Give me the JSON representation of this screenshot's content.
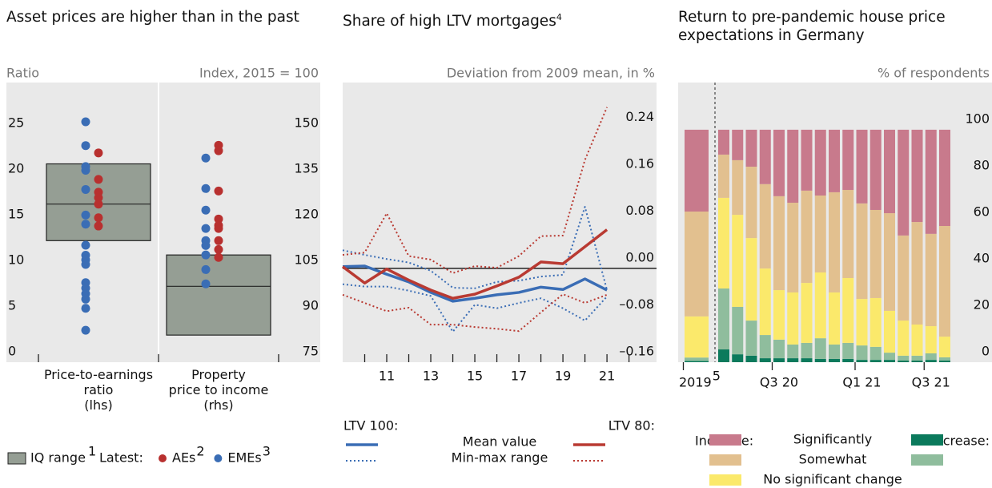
{
  "chart_data": [
    {
      "type": "box",
      "title": "Asset prices are higher than in the past",
      "y_label": "Ratio",
      "y2_label": "Index, 2015 = 100",
      "categories": [
        "Price-to-earnings\nratio\n(lhs)",
        "Property\nprice to income\n(rhs)"
      ],
      "boxes": [
        {
          "axis": "y",
          "q1": 13.3,
          "median": 17.3,
          "q3": 21.7
        },
        {
          "axis": "y2",
          "q1": 83.9,
          "median": 99.9,
          "q3": 110.2
        }
      ],
      "box_color": "#959e94",
      "series": [
        {
          "name": "AEs",
          "note": "2",
          "color": "#b8302f",
          "values": [
            [
              22.9,
              20.0,
              18.6,
              18.0,
              17.3,
              15.8,
              14.9
            ],
            [
              146.2,
              144.4,
              131.2,
              122,
              119.9,
              118.9,
              114.9,
              112,
              109.4
            ]
          ]
        },
        {
          "name": "EMEs",
          "note": "3",
          "color": "#3a6db5",
          "values": [
            [
              26.3,
              23.7,
              21.4,
              21.0,
              18.9,
              16.1,
              15.1,
              12.8,
              11.7,
              11.2,
              10.7,
              8.7,
              8.1,
              7.5,
              6.9,
              5.9,
              3.5
            ],
            [
              142,
              132,
              124.9,
              118.9,
              114.9,
              113.3,
              110.2,
              105.4,
              100.7
            ]
          ]
        }
      ],
      "ylim": [
        0,
        30.6
      ],
      "yticks": [
        0,
        5,
        10,
        15,
        20,
        25
      ],
      "y2lim": [
        75,
        166.8
      ],
      "y2ticks": [
        75,
        90,
        105,
        120,
        135,
        150
      ],
      "legend": {
        "box_label": "IQ range",
        "box_note": "1",
        "latest_label": "Latest:"
      }
    },
    {
      "type": "line",
      "title": "Share of high LTV mortgages",
      "title_note": "4",
      "y_label": "Deviation from 2009 mean, in %",
      "x": [
        2009,
        2010,
        2011,
        2012,
        2013,
        2014,
        2015,
        2016,
        2017,
        2018,
        2019,
        2020,
        2021
      ],
      "xlim": [
        2009,
        2023.25
      ],
      "xticks": [
        {
          "value": 2011,
          "label": "11"
        },
        {
          "value": 2013,
          "label": "13"
        },
        {
          "value": 2015,
          "label": "15"
        },
        {
          "value": 2017,
          "label": "17"
        },
        {
          "value": 2019,
          "label": "19"
        },
        {
          "value": 2021,
          "label": "21"
        }
      ],
      "xminorticks": [
        2010,
        2012,
        2014,
        2016,
        2018,
        2020,
        2022
      ],
      "ylim": [
        -0.16,
        0.317
      ],
      "yticks": [
        {
          "value": -0.16,
          "label": "–0.16"
        },
        {
          "value": -0.08,
          "label": "–0.08"
        },
        {
          "value": 0,
          "label": "0.00"
        },
        0.08,
        0.16,
        0.24
      ],
      "zero_line": true,
      "legend": {
        "groups": [
          "LTV 100:",
          "LTV 80:"
        ],
        "entries": [
          "Mean value",
          "Min-max range"
        ]
      },
      "series": [
        {
          "group": 0,
          "entry": 0,
          "color": "#3a6db5",
          "values": [
            0.003,
            0.004,
            -0.01,
            -0.023,
            -0.041,
            -0.056,
            -0.051,
            -0.045,
            -0.041,
            -0.032,
            -0.036,
            -0.018,
            -0.037
          ]
        },
        {
          "group": 0,
          "entry": 1,
          "color": "#3a6db5",
          "low": [
            -0.027,
            -0.031,
            -0.031,
            -0.038,
            -0.047,
            -0.108,
            -0.062,
            -0.068,
            -0.059,
            -0.051,
            -0.068,
            -0.089,
            -0.048
          ],
          "high": [
            0.031,
            0.023,
            0.016,
            0.01,
            -0.004,
            -0.033,
            -0.034,
            -0.023,
            -0.021,
            -0.014,
            -0.011,
            0.105,
            -0.037
          ]
        },
        {
          "group": 1,
          "entry": 0,
          "color": "#b93a32",
          "values": [
            0.003,
            -0.025,
            -0.001,
            -0.02,
            -0.037,
            -0.051,
            -0.044,
            -0.03,
            -0.015,
            0.011,
            0.008,
            0.037,
            0.066
          ]
        },
        {
          "group": 1,
          "entry": 1,
          "color": "#b93a32",
          "low": [
            -0.045,
            -0.059,
            -0.073,
            -0.067,
            -0.096,
            -0.096,
            -0.1,
            -0.103,
            -0.107,
            -0.075,
            -0.044,
            -0.059,
            -0.045
          ],
          "high": [
            0.023,
            0.027,
            0.094,
            0.021,
            0.015,
            -0.008,
            0.004,
            0.001,
            0.021,
            0.055,
            0.056,
            0.185,
            0.275
          ]
        }
      ]
    },
    {
      "type": "bar",
      "stacked": true,
      "title": "Return to pre-pandemic house price expectations in Germany",
      "y_label": "% of respondents",
      "categories": [
        "2019",
        null,
        null,
        null,
        null,
        "Q3 20",
        null,
        null,
        null,
        null,
        null,
        "Q1 21",
        null,
        null,
        null,
        null,
        "Q3 21",
        null
      ],
      "first_category_note": "5",
      "ylim": [
        0,
        120.3
      ],
      "yticks": [
        0,
        20,
        40,
        60,
        80,
        100
      ],
      "legend": {
        "groups": [
          "Increase:",
          "Decrease:"
        ],
        "entries": [
          "Significantly",
          "Somewhat",
          "No significant change"
        ]
      },
      "series": [
        {
          "group": 1,
          "entry": 0,
          "color": "#0b7a5c",
          "values": [
            0.5,
            5.5,
            3.4,
            2.8,
            1.7,
            1.7,
            1.7,
            1.7,
            1.4,
            1.4,
            1.4,
            1.0,
            1.0,
            1.0,
            0.7,
            0.7,
            1.0,
            0.7
          ]
        },
        {
          "group": 1,
          "entry": 1,
          "color": "#8fbd9d",
          "values": [
            1.5,
            26.2,
            20.4,
            15.1,
            10.0,
            8.0,
            5.9,
            6.6,
            8.9,
            6.2,
            6.9,
            6.2,
            5.6,
            3.1,
            2.1,
            2.1,
            2.8,
            1.4
          ]
        },
        {
          "group": null,
          "entry": 2,
          "color": "#fbe96b",
          "values": [
            17.7,
            39.0,
            39.6,
            35.5,
            28.6,
            21.3,
            22.4,
            25.8,
            28.3,
            22.4,
            27.9,
            20.0,
            21.0,
            18.0,
            15.1,
            13.4,
            11.7,
            8.9
          ]
        },
        {
          "group": 0,
          "entry": 1,
          "color": "#e2c08f",
          "values": [
            45.1,
            18.6,
            23.5,
            30.7,
            36.3,
            40.4,
            38.6,
            39.7,
            33.1,
            43.1,
            37.9,
            41.1,
            37.9,
            42.0,
            36.6,
            44.1,
            39.7,
            47.6
          ]
        },
        {
          "group": 0,
          "entry": 0,
          "color": "#c87a8c",
          "values": [
            35.2,
            10.7,
            13.1,
            15.9,
            23.4,
            28.6,
            31.4,
            26.2,
            28.3,
            26.9,
            25.9,
            31.7,
            34.5,
            35.9,
            45.5,
            39.7,
            44.8,
            41.4
          ]
        }
      ]
    }
  ]
}
